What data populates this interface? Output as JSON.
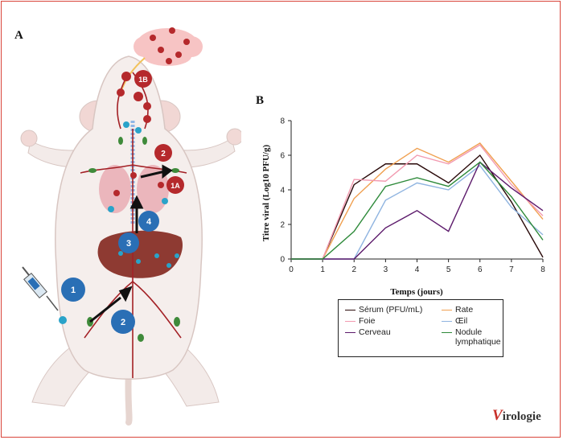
{
  "panels": {
    "a": "A",
    "b": "B"
  },
  "markers": [
    {
      "id": "1B",
      "color": "#b5292c"
    },
    {
      "id": "2",
      "color": "#b5292c"
    },
    {
      "id": "1A",
      "color": "#b5292c"
    },
    {
      "id": "4",
      "color": "#2a6fb5"
    },
    {
      "id": "3",
      "color": "#2a6fb5"
    },
    {
      "id": "1",
      "color": "#2a6fb5"
    },
    {
      "id": "2",
      "color": "#2a6fb5"
    }
  ],
  "colors": {
    "frame": "#d9453a",
    "vessel": "#a32025",
    "virus_red": "#b5292c",
    "virus_blue": "#2aa3c9",
    "node": "#3f8a3a"
  },
  "chart_data": {
    "type": "line",
    "x": [
      0,
      1,
      2,
      3,
      4,
      5,
      6,
      7,
      8
    ],
    "xlabel": "Temps (jours)",
    "ylabel": "Titre viral (Log10 PFU/g)",
    "xlim": [
      0,
      8
    ],
    "ylim": [
      0,
      8
    ],
    "xticks": [
      "0",
      "1",
      "2",
      "3",
      "4",
      "5",
      "6",
      "7",
      "8"
    ],
    "yticks": [
      "0",
      "2",
      "4",
      "6",
      "8"
    ],
    "grid": false,
    "legend_position": "bottom",
    "series": [
      {
        "name": "Sérum (PFU/mL)",
        "color": "#2a0a0a",
        "values": [
          0,
          0,
          4.3,
          5.5,
          5.5,
          4.4,
          6.0,
          3.3,
          0.1
        ]
      },
      {
        "name": "Rate",
        "color": "#f0a050",
        "values": [
          0,
          0,
          3.5,
          5.2,
          6.4,
          5.6,
          6.7,
          4.5,
          2.3
        ]
      },
      {
        "name": "Foie",
        "color": "#f29ab0",
        "values": [
          0,
          0,
          4.6,
          4.5,
          6.0,
          5.5,
          6.6,
          4.3,
          2.5
        ]
      },
      {
        "name": "Œil",
        "color": "#8fb4e0",
        "values": [
          0,
          0,
          0,
          3.4,
          4.4,
          4.0,
          5.4,
          3.0,
          1.4
        ]
      },
      {
        "name": "Cerveau",
        "color": "#5c1a6b",
        "values": [
          0,
          0,
          0,
          1.8,
          2.8,
          1.6,
          5.6,
          4.1,
          2.8
        ]
      },
      {
        "name": "Nodule lymphatique",
        "color": "#2e8a3a",
        "values": [
          0,
          0,
          1.6,
          4.2,
          4.7,
          4.2,
          5.6,
          3.6,
          1.1
        ]
      }
    ]
  },
  "legend": [
    {
      "label": "Sérum (PFU/mL)",
      "color": "#2a0a0a"
    },
    {
      "label": "Rate",
      "color": "#f0a050"
    },
    {
      "label": "Foie",
      "color": "#f29ab0"
    },
    {
      "label": "Œil",
      "color": "#8fb4e0"
    },
    {
      "label": "Cerveau",
      "color": "#5c1a6b"
    },
    {
      "label": "Nodule lymphatique",
      "color": "#2e8a3a"
    }
  ],
  "logo": {
    "initial": "V",
    "rest": "irologie"
  }
}
